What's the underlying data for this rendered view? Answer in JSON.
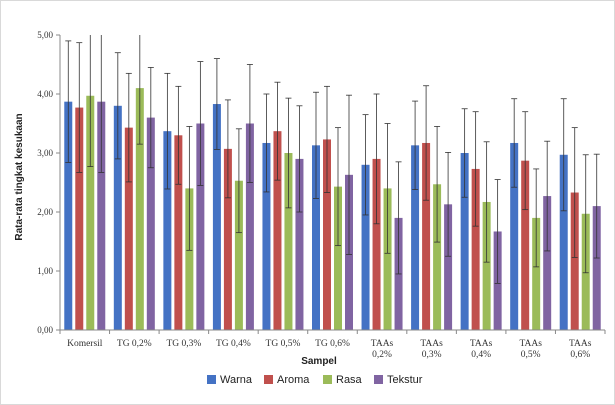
{
  "chart_data": {
    "type": "bar",
    "xlabel": "Sampel",
    "ylabel": "Rata-rata tingkat kesukaan",
    "ylim": [
      0,
      5
    ],
    "yticks": [
      "0,00",
      "1,00",
      "2,00",
      "3,00",
      "4,00",
      "5,00"
    ],
    "grid": false,
    "legend_position": "bottom",
    "categories": [
      [
        "Komersil"
      ],
      [
        "TG 0,2%"
      ],
      [
        "TG 0,3%"
      ],
      [
        "TG 0,4%"
      ],
      [
        "TG 0,5%"
      ],
      [
        "TG 0,6%"
      ],
      [
        "TAAs",
        "0,2%"
      ],
      [
        "TAAs",
        "0,3%"
      ],
      [
        "TAAs",
        "0,4%"
      ],
      [
        "TAAs",
        "0,5%"
      ],
      [
        "TAAs",
        "0,6%"
      ]
    ],
    "series": [
      {
        "name": "Warna",
        "color": "#4472C4",
        "values": [
          3.87,
          3.8,
          3.37,
          3.83,
          3.17,
          3.13,
          2.8,
          3.13,
          3.0,
          3.17,
          2.97
        ],
        "errors": [
          1.03,
          0.9,
          0.98,
          0.77,
          0.83,
          0.9,
          0.85,
          0.75,
          0.75,
          0.75,
          0.95
        ]
      },
      {
        "name": "Aroma",
        "color": "#C0504D",
        "values": [
          3.77,
          3.43,
          3.3,
          3.07,
          3.37,
          3.23,
          2.9,
          3.17,
          2.73,
          2.87,
          2.33
        ],
        "errors": [
          1.1,
          0.92,
          0.83,
          0.83,
          0.83,
          0.9,
          1.1,
          0.97,
          0.97,
          0.83,
          1.1
        ]
      },
      {
        "name": "Rasa",
        "color": "#9BBB59",
        "values": [
          3.97,
          4.1,
          2.4,
          2.53,
          3.0,
          2.43,
          2.4,
          2.47,
          2.17,
          1.9,
          1.97
        ],
        "errors": [
          1.2,
          0.95,
          1.05,
          0.88,
          0.93,
          1.0,
          1.1,
          0.98,
          1.02,
          0.83,
          1.0
        ]
      },
      {
        "name": "Tekstur",
        "color": "#8064A2",
        "values": [
          3.87,
          3.6,
          3.5,
          3.5,
          2.9,
          2.63,
          1.9,
          2.13,
          1.67,
          2.27,
          2.1
        ],
        "errors": [
          1.2,
          0.85,
          1.05,
          1.0,
          0.9,
          1.35,
          0.95,
          0.88,
          0.88,
          0.93,
          0.88
        ]
      }
    ]
  }
}
